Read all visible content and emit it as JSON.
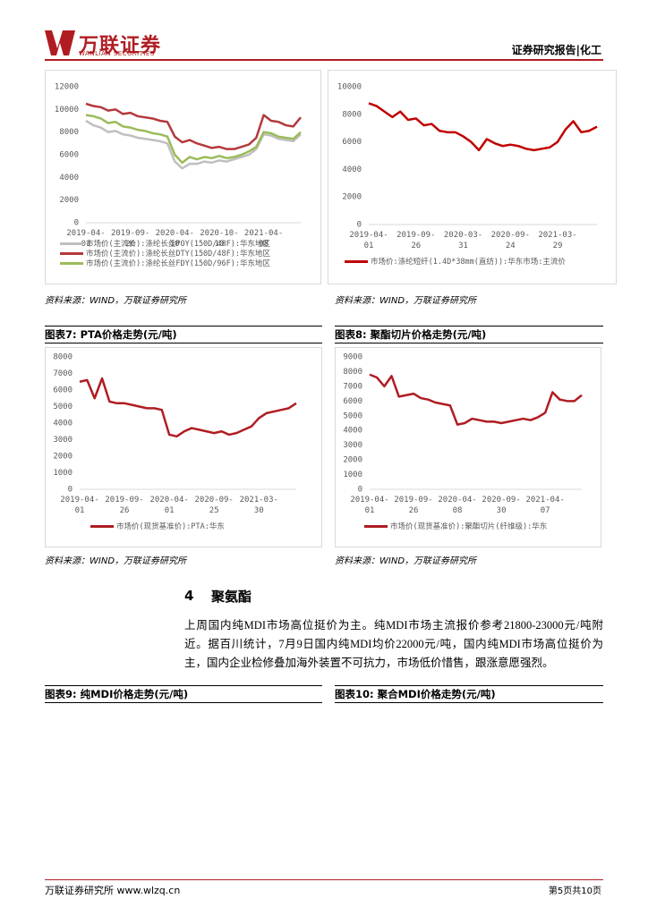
{
  "header": {
    "logo": "万联证券",
    "logo_en": "WANLIAN SECURITIES",
    "report_type": "证券研究报告|化工"
  },
  "chart_data": [
    {
      "type": "line",
      "categories": [
        "2019-04-01",
        null,
        null,
        null,
        null,
        null,
        "2019-09-26",
        null,
        null,
        null,
        null,
        null,
        "2020-04-10",
        null,
        null,
        null,
        null,
        null,
        "2020-10-10",
        null,
        null,
        null,
        null,
        null,
        "2021-04-08",
        null,
        null,
        null,
        null,
        null
      ],
      "ylim": [
        0,
        12000
      ],
      "yticks": [
        0,
        2000,
        4000,
        6000,
        8000,
        10000,
        12000
      ],
      "grid": false,
      "series": [
        {
          "name": "市场价(主流价):涤纶长丝POY(150D/48F):华东地区",
          "color": "#bfbfbf",
          "values": [
            9000,
            8600,
            8400,
            8000,
            8100,
            7800,
            7700,
            7500,
            7400,
            7300,
            7200,
            7000,
            5400,
            4800,
            5200,
            5200,
            5400,
            5300,
            5500,
            5400,
            5600,
            5800,
            6000,
            6500,
            7800,
            7700,
            7400,
            7300,
            7200,
            7800
          ]
        },
        {
          "name": "市场价(主流价):涤纶长丝DTY(150D/48F):华东地区",
          "color": "#b5383b",
          "values": [
            10500,
            10300,
            10200,
            9900,
            10000,
            9600,
            9700,
            9400,
            9300,
            9200,
            9000,
            8900,
            7600,
            7100,
            7300,
            7000,
            6800,
            6600,
            6700,
            6500,
            6500,
            6700,
            6900,
            7500,
            9500,
            9000,
            8900,
            8600,
            8500,
            9300
          ]
        },
        {
          "name": "市场价(主流价):涤纶长丝FDY(150D/96F):华东地区",
          "color": "#9bbb59",
          "values": [
            9500,
            9400,
            9200,
            8800,
            8900,
            8500,
            8400,
            8200,
            8100,
            7900,
            7800,
            7600,
            6000,
            5300,
            5800,
            5600,
            5800,
            5700,
            5900,
            5700,
            5800,
            6000,
            6300,
            6700,
            8000,
            7900,
            7600,
            7500,
            7400,
            8000
          ]
        }
      ],
      "source": "资料来源：WIND，万联证券研究所"
    },
    {
      "type": "line",
      "categories": [
        "2019-04-01",
        null,
        null,
        null,
        null,
        null,
        "2019-09-26",
        null,
        null,
        null,
        null,
        null,
        "2020-03-31",
        null,
        null,
        null,
        null,
        null,
        "2020-09-24",
        null,
        null,
        null,
        null,
        null,
        "2021-03-29",
        null,
        null,
        null,
        null,
        null
      ],
      "ylim": [
        0,
        10000
      ],
      "yticks": [
        0,
        2000,
        4000,
        6000,
        8000,
        10000
      ],
      "grid": false,
      "series": [
        {
          "name": "市场价:涤纶短纤(1.4D*38mm(直纺)):华东市场:主流价",
          "color": "#c00000",
          "values": [
            8800,
            8600,
            8200,
            7800,
            8200,
            7600,
            7700,
            7200,
            7300,
            6800,
            6700,
            6700,
            6400,
            6000,
            5400,
            6200,
            5900,
            5700,
            5800,
            5700,
            5500,
            5400,
            5500,
            5600,
            6000,
            6900,
            7500,
            6700,
            6800,
            7100
          ]
        }
      ],
      "source": "资料来源：WIND，万联证券研究所"
    },
    {
      "type": "line",
      "caption": "图表7:  PTA价格走势(元/吨)",
      "categories": [
        "2019-04-01",
        null,
        null,
        null,
        null,
        null,
        "2019-09-26",
        null,
        null,
        null,
        null,
        null,
        "2020-04-01",
        null,
        null,
        null,
        null,
        null,
        "2020-09-25",
        null,
        null,
        null,
        null,
        null,
        "2021-03-30",
        null,
        null,
        null,
        null,
        null
      ],
      "ylim": [
        0,
        8000
      ],
      "yticks": [
        0,
        1000,
        2000,
        3000,
        4000,
        5000,
        6000,
        7000,
        8000
      ],
      "grid": false,
      "series": [
        {
          "name": "市场价(现货基准价):PTA:华东",
          "color": "#b01c22",
          "values": [
            6500,
            6600,
            5500,
            6700,
            5300,
            5200,
            5200,
            5100,
            5000,
            4900,
            4900,
            4800,
            3300,
            3200,
            3500,
            3700,
            3600,
            3500,
            3400,
            3500,
            3300,
            3400,
            3600,
            3800,
            4300,
            4600,
            4700,
            4800,
            4900,
            5200
          ]
        }
      ],
      "source": "资料来源：WIND，万联证券研究所"
    },
    {
      "type": "line",
      "caption": "图表8:  聚酯切片价格走势(元/吨)",
      "categories": [
        "2019-04-01",
        null,
        null,
        null,
        null,
        null,
        "2019-09-26",
        null,
        null,
        null,
        null,
        null,
        "2020-04-08",
        null,
        null,
        null,
        null,
        null,
        "2020-09-30",
        null,
        null,
        null,
        null,
        null,
        "2021-04-07",
        null,
        null,
        null,
        null,
        null
      ],
      "ylim": [
        0,
        9000
      ],
      "yticks": [
        0,
        1000,
        2000,
        3000,
        4000,
        5000,
        6000,
        7000,
        8000,
        9000
      ],
      "grid": false,
      "series": [
        {
          "name": "市场价(现货基准价):聚酯切片(纤维级):华东",
          "color": "#b01c22",
          "values": [
            7800,
            7600,
            7000,
            7700,
            6300,
            6400,
            6500,
            6200,
            6100,
            5900,
            5800,
            5700,
            4400,
            4500,
            4800,
            4700,
            4600,
            4600,
            4500,
            4600,
            4700,
            4800,
            4700,
            4900,
            5200,
            6600,
            6100,
            6000,
            6000,
            6400
          ]
        }
      ],
      "source": "资料来源：WIND，万联证券研究所"
    }
  ],
  "section": {
    "number": "4",
    "title": "聚氨酯",
    "paragraph": "上周国内纯MDI市场高位挺价为主。纯MDI市场主流报价参考21800-23000元/吨附近。据百川统计，7月9日国内纯MDI均价22000元/吨，国内纯MDI市场高位挺价为主，国内企业检修叠加海外装置不可抗力，市场低价惜售，跟涨意愿强烈。"
  },
  "figures": [
    "图表9:  纯MDI价格走势(元/吨)",
    "图表10:  聚合MDI价格走势(元/吨)"
  ],
  "footer": {
    "left": "万联证券研究所 www.wlzq.cn",
    "right": "第5页共10页"
  }
}
